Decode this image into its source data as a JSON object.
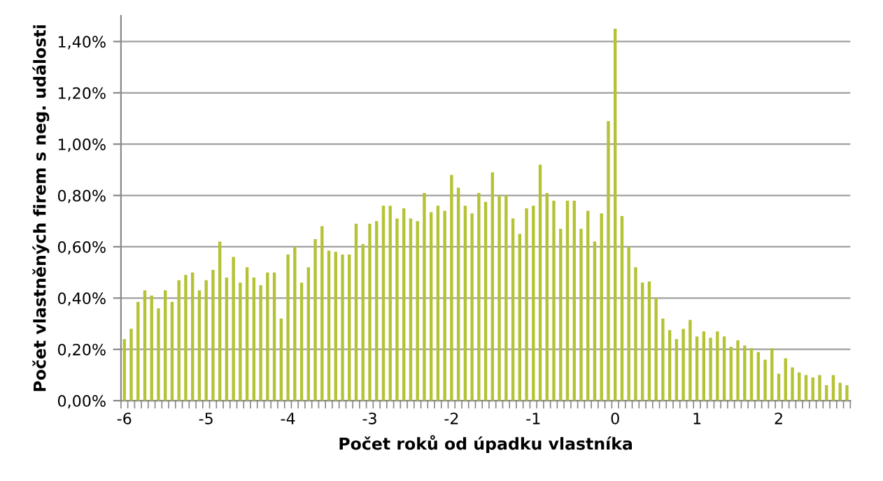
{
  "chart_data": {
    "type": "bar",
    "xlabel": "Počet roků od úpadku vlastníka",
    "ylabel": "Počet vlastněných firem s neg. události",
    "categories": [
      "-6",
      null,
      null,
      null,
      null,
      null,
      null,
      null,
      null,
      null,
      null,
      null,
      "-5",
      null,
      null,
      null,
      null,
      null,
      null,
      null,
      null,
      null,
      null,
      null,
      "-4",
      null,
      null,
      null,
      null,
      null,
      null,
      null,
      null,
      null,
      null,
      null,
      "-3",
      null,
      null,
      null,
      null,
      null,
      null,
      null,
      null,
      null,
      null,
      null,
      "-2",
      null,
      null,
      null,
      null,
      null,
      null,
      null,
      null,
      null,
      null,
      null,
      "-1",
      null,
      null,
      null,
      null,
      null,
      null,
      null,
      null,
      null,
      null,
      null,
      "0",
      null,
      null,
      null,
      null,
      null,
      null,
      null,
      null,
      null,
      null,
      null,
      "1",
      null,
      null,
      null,
      null,
      null,
      null,
      null,
      null,
      null,
      null,
      null,
      "2",
      null,
      null,
      null,
      null,
      null,
      null,
      null,
      null,
      null,
      null
    ],
    "values": [
      0.24,
      0.28,
      0.385,
      0.43,
      0.41,
      0.36,
      0.43,
      0.385,
      0.47,
      0.49,
      0.5,
      0.43,
      0.47,
      0.51,
      0.62,
      0.48,
      0.56,
      0.46,
      0.52,
      0.48,
      0.45,
      0.5,
      0.5,
      0.32,
      0.57,
      0.6,
      0.46,
      0.52,
      0.63,
      0.68,
      0.585,
      0.58,
      0.57,
      0.57,
      0.69,
      0.61,
      0.69,
      0.7,
      0.76,
      0.76,
      0.71,
      0.75,
      0.71,
      0.7,
      0.81,
      0.735,
      0.76,
      0.74,
      0.88,
      0.83,
      0.76,
      0.73,
      0.81,
      0.775,
      0.89,
      0.8,
      0.8,
      0.71,
      0.65,
      0.75,
      0.76,
      0.92,
      0.81,
      0.78,
      0.67,
      0.78,
      0.78,
      0.67,
      0.74,
      0.62,
      0.73,
      1.09,
      1.45,
      0.72,
      0.6,
      0.52,
      0.46,
      0.465,
      0.4,
      0.32,
      0.275,
      0.24,
      0.28,
      0.315,
      0.25,
      0.27,
      0.245,
      0.27,
      0.25,
      0.21,
      0.235,
      0.215,
      0.205,
      0.19,
      0.16,
      0.205,
      0.105,
      0.165,
      0.13,
      0.11,
      0.1,
      0.09,
      0.1,
      0.06,
      0.1,
      0.07,
      0.06
    ],
    "color": "#b5c234",
    "ylim": [
      0,
      1.5
    ],
    "yticks": [
      {
        "value": 0,
        "label": "0,00%"
      },
      {
        "value": 0.2,
        "label": "0,20%"
      },
      {
        "value": 0.4,
        "label": "0,40%"
      },
      {
        "value": 0.6,
        "label": "0,60%"
      },
      {
        "value": 0.8,
        "label": "0,80%"
      },
      {
        "value": 1.0,
        "label": "1,00%"
      },
      {
        "value": 1.2,
        "label": "1,20%"
      },
      {
        "value": 1.4,
        "label": "1,40%"
      }
    ],
    "grid": "y"
  }
}
